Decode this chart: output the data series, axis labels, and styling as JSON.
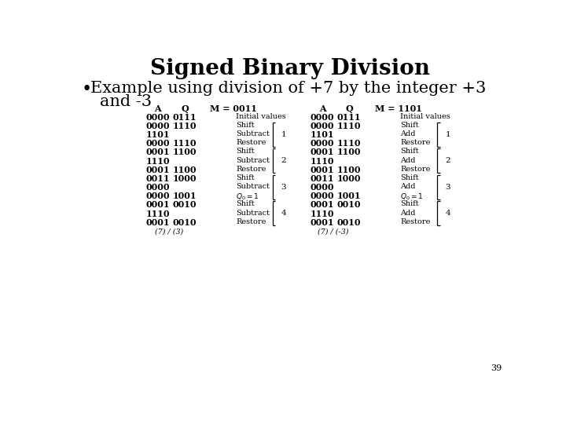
{
  "title": "Signed Binary Division",
  "bg_color": "#ffffff",
  "text_color": "#000000",
  "title_fontsize": 20,
  "bullet_fontsize": 15,
  "left_table": {
    "header_A": "A",
    "header_Q": "Q",
    "header_M": "M = 0011",
    "rows": [
      {
        "A": "0000",
        "Q": "0111",
        "op": "Initial values",
        "group": null
      },
      {
        "A": "0000",
        "Q": "1110",
        "op": "Shift",
        "group": 1
      },
      {
        "A": "1101",
        "Q": "",
        "op": "Subtract",
        "group": 1
      },
      {
        "A": "0000",
        "Q": "1110",
        "op": "Restore",
        "group": 1
      },
      {
        "A": "0001",
        "Q": "1100",
        "op": "Shift",
        "group": 2
      },
      {
        "A": "1110",
        "Q": "",
        "op": "Subtract",
        "group": 2
      },
      {
        "A": "0001",
        "Q": "1100",
        "op": "Restore",
        "group": 2
      },
      {
        "A": "0011",
        "Q": "1000",
        "op": "Shift",
        "group": 3
      },
      {
        "A": "0000",
        "Q": "",
        "op": "Subtract",
        "group": 3
      },
      {
        "A": "0000",
        "Q": "1001",
        "op": "Q0=1",
        "group": 3
      },
      {
        "A": "0001",
        "Q": "0010",
        "op": "Shift",
        "group": 4
      },
      {
        "A": "1110",
        "Q": "",
        "op": "Subtract",
        "group": 4
      },
      {
        "A": "0001",
        "Q": "0010",
        "op": "Restore",
        "group": 4
      }
    ],
    "footer": "(7) / (3)"
  },
  "right_table": {
    "header_A": "A",
    "header_Q": "Q",
    "header_M": "M = 1101",
    "rows": [
      {
        "A": "0000",
        "Q": "0111",
        "op": "Initial values",
        "group": null
      },
      {
        "A": "0000",
        "Q": "1110",
        "op": "Shift",
        "group": 1
      },
      {
        "A": "1101",
        "Q": "",
        "op": "Add",
        "group": 1
      },
      {
        "A": "0000",
        "Q": "1110",
        "op": "Restore",
        "group": 1
      },
      {
        "A": "0001",
        "Q": "1100",
        "op": "Shift",
        "group": 2
      },
      {
        "A": "1110",
        "Q": "",
        "op": "Add",
        "group": 2
      },
      {
        "A": "0001",
        "Q": "1100",
        "op": "Restore",
        "group": 2
      },
      {
        "A": "0011",
        "Q": "1000",
        "op": "Shift",
        "group": 3
      },
      {
        "A": "0000",
        "Q": "",
        "op": "Add",
        "group": 3
      },
      {
        "A": "0000",
        "Q": "1001",
        "op": "Q0=1",
        "group": 3
      },
      {
        "A": "0001",
        "Q": "0010",
        "op": "Shift",
        "group": 4
      },
      {
        "A": "1110",
        "Q": "",
        "op": "Add",
        "group": 4
      },
      {
        "A": "0001",
        "Q": "0010",
        "op": "Restore",
        "group": 4
      }
    ],
    "footer": "(7) / (-3)",
    "boxed_row": 12,
    "boxed_col": "Q"
  }
}
